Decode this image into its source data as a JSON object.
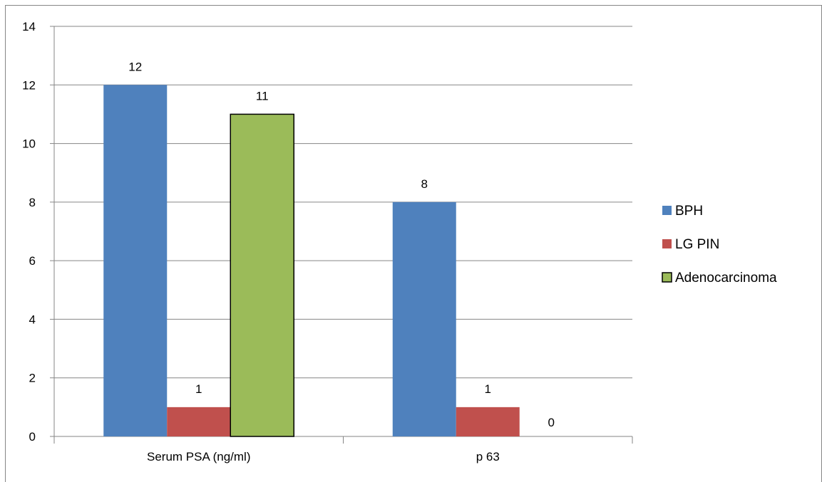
{
  "chart_data": {
    "type": "bar",
    "title": "",
    "xlabel": "",
    "ylabel": "",
    "categories": [
      "Serum PSA (ng/ml)",
      "p 63"
    ],
    "series": [
      {
        "name": "BPH",
        "values": [
          12,
          8
        ],
        "color": "#4f81bd"
      },
      {
        "name": "LG PIN",
        "values": [
          1,
          1
        ],
        "color": "#c0504d"
      },
      {
        "name": "Adenocarcinoma",
        "values": [
          11,
          0
        ],
        "color": "#9bbb59"
      }
    ],
    "ylim": [
      0,
      14
    ],
    "yticks": [
      "0",
      "2",
      "4",
      "6",
      "8",
      "10",
      "12",
      "14"
    ],
    "data_labels": true,
    "grid": true,
    "legend_position": "right"
  }
}
